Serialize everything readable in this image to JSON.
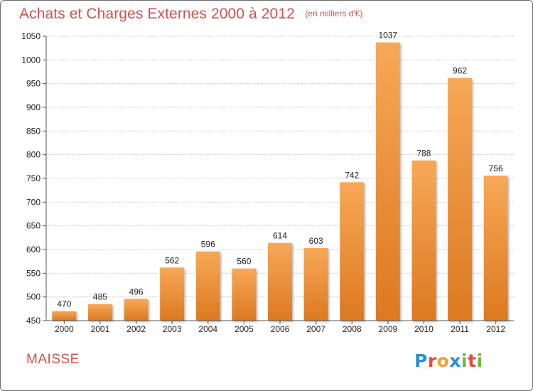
{
  "title": "Achats et Charges Externes 2000 à 2012",
  "subtitle": "(en milliers d'€)",
  "commune": "MAISSE",
  "logo": {
    "text": "Proxiti",
    "letters": [
      {
        "char": "P",
        "color": "#2a8fd6"
      },
      {
        "char": "r",
        "color": "#e84a3c"
      },
      {
        "char": "o",
        "color": "#f2a12b"
      },
      {
        "char": "x",
        "color": "#2a8fd6"
      },
      {
        "char": "i",
        "color": "#6fb63d"
      },
      {
        "char": "t",
        "color": "#e84a3c"
      },
      {
        "char": "i",
        "color": "#6fb63d"
      }
    ]
  },
  "colors": {
    "bar_light": "#f7a857",
    "bar_dark": "#dc7920",
    "title": "#d1504a",
    "grid": "#c8c8c8",
    "axis_text": "#222222"
  },
  "chart_data": {
    "type": "bar",
    "categories": [
      "2000",
      "2001",
      "2002",
      "2003",
      "2004",
      "2005",
      "2006",
      "2007",
      "2008",
      "2009",
      "2010",
      "2011",
      "2012"
    ],
    "values": [
      470,
      485,
      496,
      562,
      596,
      560,
      614,
      603,
      742,
      1037,
      788,
      962,
      756
    ],
    "data_labels": [
      "470",
      "485",
      "496",
      "562",
      "596",
      "560",
      "614",
      "603",
      "742",
      "1037",
      "788",
      "962",
      "756"
    ],
    "title": "Achats et Charges Externes 2000 à 2012",
    "subtitle": "(en milliers d'€)",
    "xlabel": "",
    "ylabel": "",
    "ylim": [
      450,
      1050
    ],
    "yticks": [
      450,
      500,
      550,
      600,
      650,
      700,
      750,
      800,
      850,
      900,
      950,
      1000,
      1050
    ],
    "grid": true
  }
}
